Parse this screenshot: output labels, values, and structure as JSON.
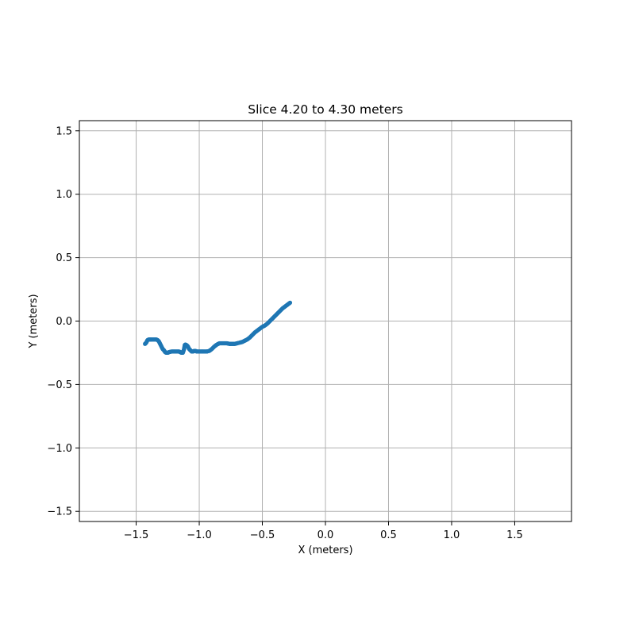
{
  "chart_data": {
    "type": "scatter",
    "title": "Slice 4.20 to 4.30 meters",
    "xlabel": "X (meters)",
    "ylabel": "Y (meters)",
    "xlim": [
      -1.95,
      1.95
    ],
    "ylim": [
      -1.58,
      1.58
    ],
    "xticks": [
      -1.5,
      -1.0,
      -0.5,
      0.0,
      0.5,
      1.0,
      1.5
    ],
    "xtick_labels": [
      "−1.5",
      "−1.0",
      "−0.5",
      "0.0",
      "0.5",
      "1.0",
      "1.5"
    ],
    "yticks": [
      -1.5,
      -1.0,
      -0.5,
      0.0,
      0.5,
      1.0,
      1.5
    ],
    "ytick_labels": [
      "−1.5",
      "−1.0",
      "−0.5",
      "0.0",
      "0.5",
      "1.0",
      "1.5"
    ],
    "grid": true,
    "legend": "none",
    "colors": {
      "series": "#1f77b4",
      "grid": "#b0b0b0",
      "axes": "#000000",
      "background": "#ffffff"
    },
    "series": [
      {
        "x": [
          -1.43,
          -1.42,
          -1.41,
          -1.4,
          -1.39,
          -1.38,
          -1.36,
          -1.34,
          -1.33,
          -1.32,
          -1.31,
          -1.3,
          -1.29,
          -1.28,
          -1.27,
          -1.26,
          -1.25,
          -1.24,
          -1.22,
          -1.2,
          -1.18,
          -1.16,
          -1.15,
          -1.14,
          -1.13,
          -1.12,
          -1.115,
          -1.11,
          -1.1,
          -1.09,
          -1.08,
          -1.07,
          -1.06,
          -1.05,
          -1.04,
          -1.03,
          -1.02,
          -1.0,
          -0.98,
          -0.96,
          -0.94,
          -0.92,
          -0.9,
          -0.88,
          -0.86,
          -0.84,
          -0.82,
          -0.8,
          -0.78,
          -0.76,
          -0.74,
          -0.72,
          -0.7,
          -0.68,
          -0.66,
          -0.64,
          -0.62,
          -0.6,
          -0.58,
          -0.56,
          -0.54,
          -0.52,
          -0.5,
          -0.48,
          -0.46,
          -0.44,
          -0.42,
          -0.4,
          -0.38,
          -0.36,
          -0.34,
          -0.32,
          -0.3,
          -0.28
        ],
        "y": [
          -0.18,
          -0.17,
          -0.15,
          -0.145,
          -0.145,
          -0.145,
          -0.145,
          -0.145,
          -0.15,
          -0.16,
          -0.18,
          -0.2,
          -0.22,
          -0.23,
          -0.245,
          -0.25,
          -0.25,
          -0.245,
          -0.24,
          -0.24,
          -0.24,
          -0.24,
          -0.245,
          -0.25,
          -0.25,
          -0.22,
          -0.19,
          -0.185,
          -0.19,
          -0.2,
          -0.22,
          -0.23,
          -0.24,
          -0.24,
          -0.235,
          -0.235,
          -0.24,
          -0.24,
          -0.24,
          -0.24,
          -0.24,
          -0.235,
          -0.22,
          -0.2,
          -0.185,
          -0.175,
          -0.175,
          -0.175,
          -0.175,
          -0.18,
          -0.18,
          -0.18,
          -0.175,
          -0.17,
          -0.165,
          -0.155,
          -0.145,
          -0.13,
          -0.11,
          -0.09,
          -0.075,
          -0.06,
          -0.045,
          -0.035,
          -0.02,
          0.0,
          0.02,
          0.04,
          0.06,
          0.08,
          0.1,
          0.115,
          0.13,
          0.145
        ]
      }
    ]
  }
}
